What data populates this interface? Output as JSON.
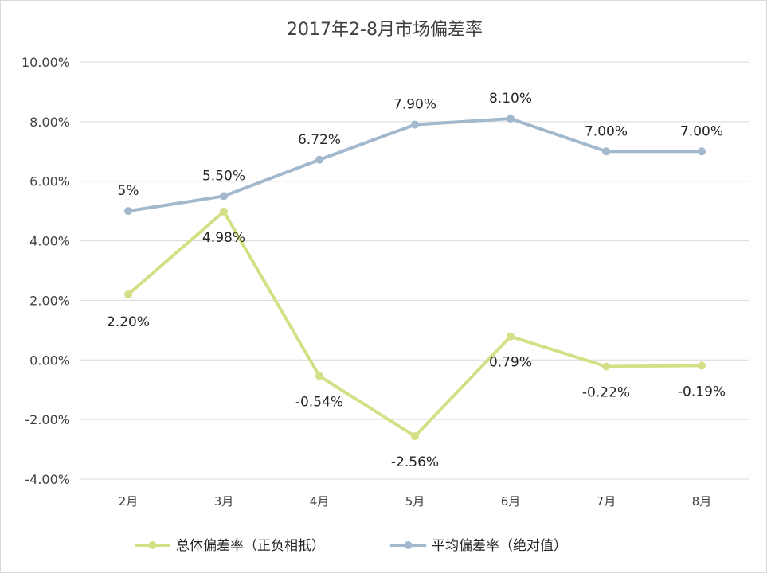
{
  "chart_data": {
    "type": "line",
    "title": "2017年2-8月市场偏差率",
    "categories": [
      "2月",
      "3月",
      "4月",
      "5月",
      "6月",
      "7月",
      "8月"
    ],
    "ylim": [
      -4,
      10
    ],
    "yticks": [
      "-4.00%",
      "-2.00%",
      "0.00%",
      "2.00%",
      "4.00%",
      "6.00%",
      "8.00%",
      "10.00%"
    ],
    "grid": true,
    "legend_position": "bottom",
    "series": [
      {
        "name": "总体偏差率（正负相抵）",
        "color": "#d5df86",
        "values": [
          2.2,
          4.98,
          -0.54,
          -2.56,
          0.79,
          -0.22,
          -0.19
        ],
        "labels": [
          "2.20%",
          "4.98%",
          "-0.54%",
          "-2.56%",
          "0.79%",
          "-0.22%",
          "-0.19%"
        ]
      },
      {
        "name": "平均偏差率（绝对值）",
        "color": "#a2b8cd",
        "values": [
          5,
          5.5,
          6.72,
          7.9,
          8.1,
          7.0,
          7.0
        ],
        "labels": [
          "5%",
          "5.50%",
          "6.72%",
          "7.90%",
          "8.10%",
          "7.00%",
          "7.00%"
        ]
      }
    ]
  }
}
